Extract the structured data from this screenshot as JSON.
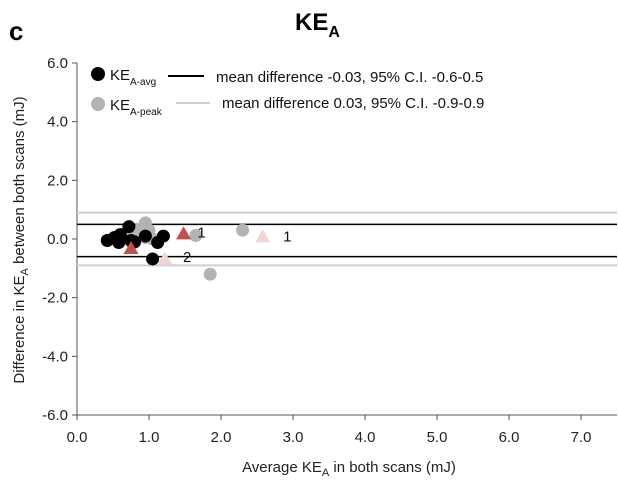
{
  "chart_data": {
    "type": "scatter",
    "panel_label": "c",
    "title": "KE",
    "title_sub": "A",
    "xlabel": {
      "pre": "Average KE",
      "sub": "A",
      "post": " in both scans (mJ)"
    },
    "ylabel": {
      "pre": "Difference in KE",
      "sub": "A",
      "post": " between both scans (mJ)"
    },
    "xlim": [
      0,
      7.5
    ],
    "ylim": [
      -6,
      6
    ],
    "x_ticks": [
      "0.0",
      "1.0",
      "2.0",
      "3.0",
      "4.0",
      "5.0",
      "6.0",
      "7.0"
    ],
    "y_ticks": [
      "6.0",
      "4.0",
      "2.0",
      "0.0",
      "-2.0",
      "-4.0",
      "-6.0"
    ],
    "series": [
      {
        "name": "KE-A-avg",
        "label_main": "KE",
        "label_sub": "A-avg",
        "color": "#000000",
        "marker": "circle",
        "points": [
          [
            0.42,
            -0.05
          ],
          [
            0.52,
            0.05
          ],
          [
            0.58,
            -0.12
          ],
          [
            0.6,
            0.15
          ],
          [
            0.72,
            0.42
          ],
          [
            0.75,
            -0.05
          ],
          [
            0.8,
            -0.1
          ],
          [
            0.95,
            0.1
          ],
          [
            1.05,
            -0.68
          ],
          [
            1.12,
            -0.12
          ],
          [
            1.2,
            0.1
          ]
        ],
        "mean_line": {
          "y": -0.03,
          "label": "mean difference -0.03, 95% C.I. -0.6-0.5",
          "ci": [
            -0.6,
            0.5
          ]
        }
      },
      {
        "name": "KE-A-peak",
        "label_main": "KE",
        "label_sub": "A-peak",
        "color": "#b3b3b3",
        "marker": "circle",
        "points": [
          [
            0.65,
            0.15
          ],
          [
            0.75,
            -0.1
          ],
          [
            0.8,
            0.05
          ],
          [
            0.85,
            0.3
          ],
          [
            0.9,
            0.3
          ],
          [
            0.95,
            0.05
          ],
          [
            0.95,
            0.55
          ],
          [
            1.0,
            0.3
          ],
          [
            1.05,
            0.0
          ],
          [
            1.65,
            0.12
          ],
          [
            1.85,
            -1.2
          ],
          [
            2.3,
            0.3
          ]
        ],
        "mean_line": {
          "y": 0.03,
          "label": "mean difference 0.03, 95% C.I. -0.9-0.9",
          "ci": [
            -0.9,
            0.9
          ]
        }
      },
      {
        "name": "outliers-avg",
        "color": "#c0504d",
        "marker": "triangle",
        "points": [
          [
            0.75,
            -0.32
          ],
          [
            1.48,
            0.18
          ]
        ]
      },
      {
        "name": "outliers-peak",
        "color": "#f2d4d4",
        "marker": "triangle",
        "points": [
          [
            1.22,
            -0.68
          ],
          [
            2.58,
            0.08
          ]
        ]
      }
    ],
    "annotations": [
      {
        "text": "1",
        "x": 1.73,
        "y": 0.22
      },
      {
        "text": "2",
        "x": 1.53,
        "y": -0.62
      },
      {
        "text": "1",
        "x": 2.92,
        "y": 0.08
      }
    ],
    "grid": false,
    "legend_position": "top"
  }
}
